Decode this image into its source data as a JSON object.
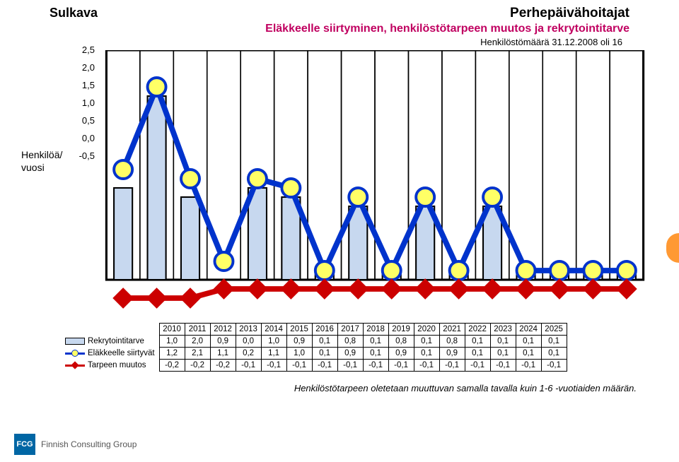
{
  "titles": {
    "left": "Sulkava",
    "main": "Perhepäivähoitajat",
    "subtitle": "Eläkkeelle siirtyminen, henkilöstötarpeen muutos ja rekrytointitarve",
    "sub2": "Henkilöstömäärä 31.12.2008 oli 16",
    "y_label1": "Henkilöä/",
    "y_label2": "vuosi",
    "footnote": "Henkilöstötarpeen oletetaan muuttuvan samalla tavalla kuin 1-6 -vuotiaiden määrän.",
    "logo_abbr": "FCG",
    "logo_text": "Finnish Consulting Group"
  },
  "chart": {
    "type": "combo-bar-line",
    "years": [
      "2010",
      "2011",
      "2012",
      "2013",
      "2014",
      "2015",
      "2016",
      "2017",
      "2018",
      "2019",
      "2020",
      "2021",
      "2022",
      "2023",
      "2024",
      "2025"
    ],
    "y_ticks": [
      "2,5",
      "2,0",
      "1,5",
      "1,0",
      "0,5",
      "0,0",
      "-0,5"
    ],
    "y_min": -0.5,
    "y_max": 2.5,
    "rows": [
      {
        "label": "Rekrytointitarve",
        "values": [
          1.0,
          2.0,
          0.9,
          0.0,
          1.0,
          0.9,
          0.1,
          0.8,
          0.1,
          0.8,
          0.1,
          0.8,
          0.1,
          0.1,
          0.1,
          0.1
        ],
        "kind": "bar",
        "fill": "#c7d8ef",
        "stroke": "#000000"
      },
      {
        "label": "Eläkkeelle siirtyvät",
        "values": [
          1.2,
          2.1,
          1.1,
          0.2,
          1.1,
          1.0,
          0.1,
          0.9,
          0.1,
          0.9,
          0.1,
          0.9,
          0.1,
          0.1,
          0.1,
          0.1
        ],
        "kind": "line",
        "color": "#0033cc",
        "marker": "circle",
        "marker_fill": "#ffff66",
        "width": 3
      },
      {
        "label": "Tarpeen muutos",
        "values": [
          -0.2,
          -0.2,
          -0.2,
          -0.1,
          -0.1,
          -0.1,
          -0.1,
          -0.1,
          -0.1,
          -0.1,
          -0.1,
          -0.1,
          -0.1,
          -0.1,
          -0.1,
          -0.1
        ],
        "kind": "line",
        "color": "#cc0000",
        "marker": "diamond",
        "marker_fill": "#cc0000",
        "width": 3
      }
    ],
    "axis_color": "#000000",
    "bg": "#ffffff"
  },
  "colors": {
    "accent_orange": "#ff9933"
  }
}
